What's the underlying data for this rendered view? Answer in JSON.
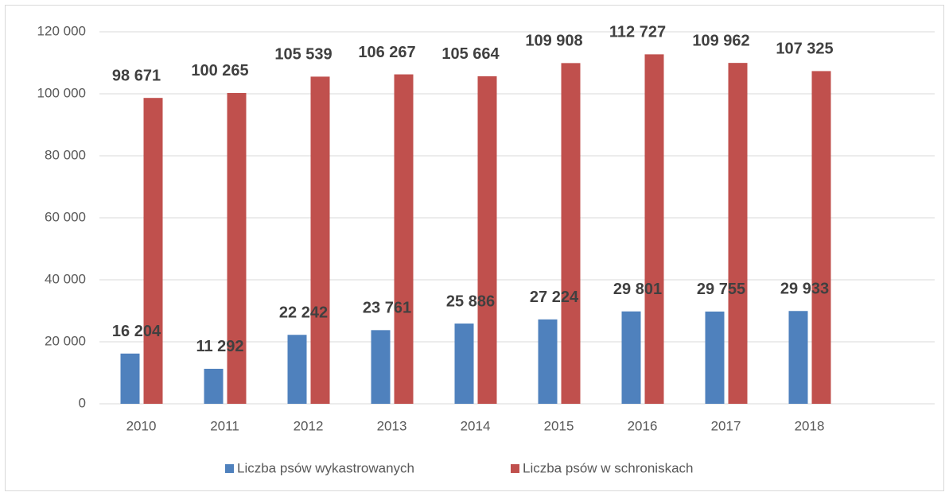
{
  "chart_data": {
    "type": "bar",
    "categories": [
      "2010",
      "2011",
      "2012",
      "2013",
      "2014",
      "2015",
      "2016",
      "2017",
      "2018",
      null
    ],
    "series": [
      {
        "name": "Liczba psów wykastrowanych",
        "color": "#4f81bd",
        "values": [
          16204,
          11292,
          22242,
          23761,
          25886,
          27224,
          29801,
          29755,
          29933,
          null
        ],
        "value_labels": [
          "16 204",
          "11 292",
          "22 242",
          "23 761",
          "25 886",
          "27 224",
          "29 801",
          "29 755",
          "29 933",
          null
        ]
      },
      {
        "name": "Liczba psów w schroniskach",
        "color": "#c0504d",
        "values": [
          98671,
          100265,
          105539,
          106267,
          105664,
          109908,
          112727,
          109962,
          107325,
          null
        ],
        "value_labels": [
          "98 671",
          "100 265",
          "105 539",
          "106 267",
          "105 664",
          "109 908",
          "112 727",
          "109 962",
          "107 325",
          null
        ]
      }
    ],
    "ylim": [
      0,
      120000
    ],
    "yticks": [
      {
        "value": 0,
        "label": "0"
      },
      {
        "value": 20000,
        "label": "20 000"
      },
      {
        "value": 40000,
        "label": "40 000"
      },
      {
        "value": 60000,
        "label": "60 000"
      },
      {
        "value": 80000,
        "label": "80 000"
      },
      {
        "value": 100000,
        "label": "100 000"
      },
      {
        "value": 120000,
        "label": "120 000"
      }
    ],
    "grid": true,
    "legend": "bottom"
  }
}
